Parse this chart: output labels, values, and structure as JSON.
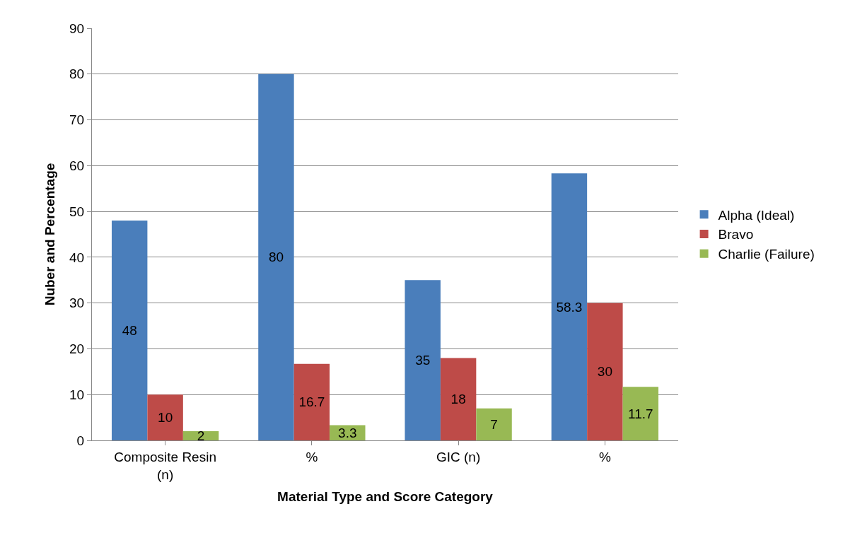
{
  "chart_data": {
    "type": "bar",
    "xlabel": "Material Type and Score Category",
    "ylabel": "Nuber and Percentage",
    "categories": [
      "Composite Resin (n)",
      "%",
      "GIC (n)",
      "%"
    ],
    "series": [
      {
        "name": "Alpha (Ideal)",
        "color": "#4a7ebb",
        "values": [
          48,
          80,
          35,
          58.3
        ]
      },
      {
        "name": "Bravo",
        "color": "#be4b48",
        "values": [
          10,
          16.7,
          18,
          30
        ]
      },
      {
        "name": "Charlie (Failure)",
        "color": "#98b954",
        "values": [
          2,
          3.3,
          7,
          11.7
        ]
      }
    ],
    "ylim": [
      0,
      90
    ],
    "yticks": [
      0,
      10,
      20,
      30,
      40,
      50,
      60,
      70,
      80,
      90
    ],
    "grid": "y",
    "legend": "right",
    "data_labels": true
  }
}
